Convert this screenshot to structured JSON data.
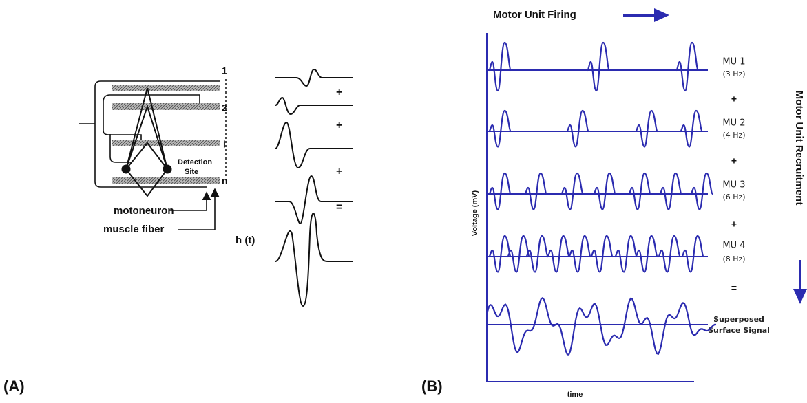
{
  "panel_a": {
    "label": "(A)",
    "fiber_labels": [
      "1",
      "2",
      "i",
      "n"
    ],
    "operators": [
      "+",
      "+",
      "+",
      "="
    ],
    "sum_label": "h (t)",
    "detection_site": [
      "Detection",
      "Site"
    ],
    "motoneuron": "motoneuron",
    "muscle_fiber": "muscle fiber"
  },
  "panel_b": {
    "label": "(B)",
    "firing": "Motor Unit Firing",
    "recruitment": "Motor Unit Recruitment",
    "y_axis": "Voltage (mV)",
    "x_axis": "time",
    "units": [
      {
        "name": "MU 1",
        "rate": "(3 Hz)"
      },
      {
        "name": "MU 2",
        "rate": "(4 Hz)"
      },
      {
        "name": "MU 3",
        "rate": "(6 Hz)"
      },
      {
        "name": "MU 4",
        "rate": "(8 Hz)"
      }
    ],
    "operators": [
      "+",
      "+",
      "+",
      "="
    ],
    "superposed": [
      "Superposed",
      "Surface Signal"
    ]
  }
}
